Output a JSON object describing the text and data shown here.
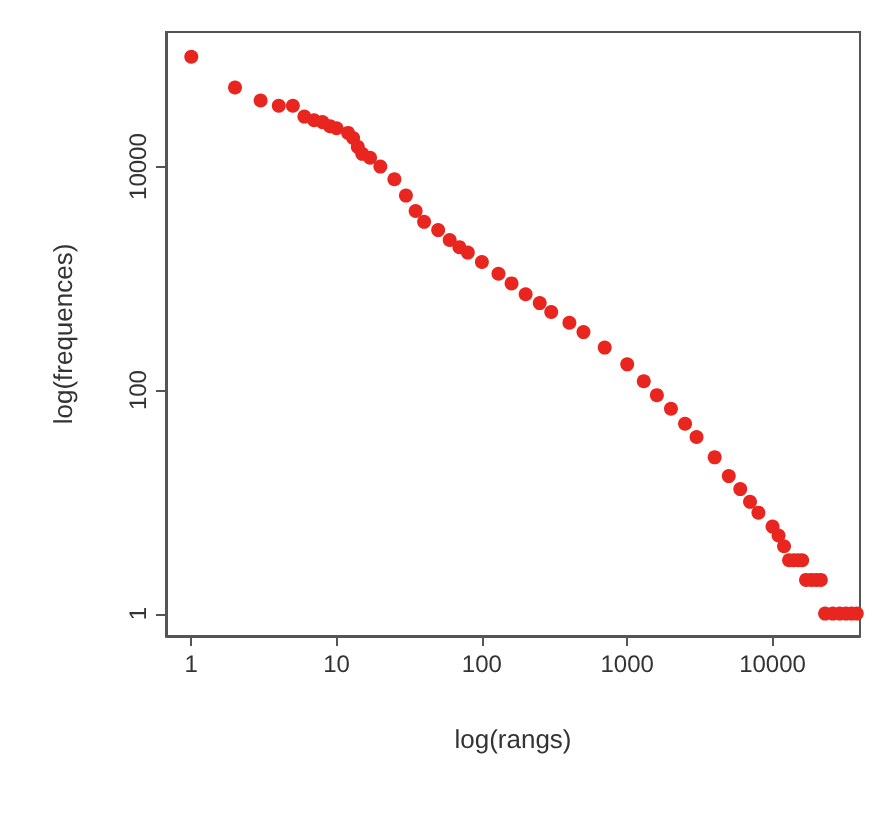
{
  "chart_data": {
    "type": "scatter",
    "xlabel": "log(rangs)",
    "ylabel": "log(frequences)",
    "log": "xy",
    "xlim": [
      0.67,
      40000
    ],
    "ylim": [
      0.63,
      160000
    ],
    "xticks": [
      1,
      10,
      100,
      1000,
      10000
    ],
    "yticks": [
      1,
      100,
      10000
    ],
    "grid": false,
    "marker": "circle",
    "series": [
      {
        "color": "#e8251f",
        "x": [
          1,
          2,
          3,
          4,
          5,
          6,
          7,
          8,
          9,
          10,
          12,
          13,
          14,
          15,
          17,
          20,
          25,
          30,
          35,
          40,
          50,
          60,
          70,
          80,
          100,
          130,
          160,
          200,
          250,
          300,
          400,
          500,
          700,
          1000,
          1300,
          1600,
          2000,
          2500,
          3000,
          4000,
          5000,
          6000,
          7000,
          8000,
          10000,
          11000,
          12000,
          13000,
          14000,
          15000,
          16000,
          17000,
          18500,
          20000,
          21500,
          23000,
          26000,
          29000,
          32000,
          35000,
          38000
        ],
        "values": [
          96000,
          51000,
          39000,
          35000,
          35000,
          28000,
          26000,
          25000,
          23000,
          22000,
          20000,
          18000,
          15000,
          13000,
          12000,
          10000,
          7700,
          5500,
          4000,
          3200,
          2700,
          2200,
          1900,
          1700,
          1400,
          1100,
          900,
          720,
          600,
          500,
          400,
          330,
          240,
          170,
          120,
          90,
          68,
          50,
          38,
          25,
          17,
          13,
          10,
          8,
          6,
          5,
          4,
          3,
          3,
          3,
          3,
          2,
          2,
          2,
          2,
          1,
          1,
          1,
          1,
          1,
          1
        ]
      }
    ]
  }
}
